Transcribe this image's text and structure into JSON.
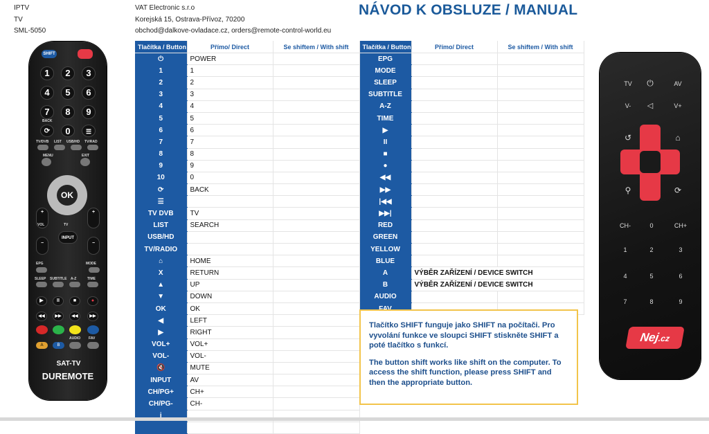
{
  "device": {
    "line1": "IPTV",
    "line2": "TV",
    "line3": "SML-5050"
  },
  "company": {
    "name": "VAT Electronic s.r.o",
    "address": "Korejská 15, Ostrava-Přívoz, 70200",
    "contact": "obchod@dalkove-ovladace.cz, orders@remote-control-world.eu"
  },
  "title": "NÁVOD K OBSLUZE / MANUAL",
  "headers": {
    "button": "Tlačítka / Button",
    "direct": "Přímo/ Direct",
    "shift": "Se shiftem / With shift"
  },
  "left_rows": [
    {
      "button": "⏻",
      "direct": "POWER",
      "shift": ""
    },
    {
      "button": "1",
      "direct": "1",
      "shift": ""
    },
    {
      "button": "2",
      "direct": "2",
      "shift": ""
    },
    {
      "button": "3",
      "direct": "3",
      "shift": ""
    },
    {
      "button": "4",
      "direct": "4",
      "shift": ""
    },
    {
      "button": "5",
      "direct": "5",
      "shift": ""
    },
    {
      "button": "6",
      "direct": "6",
      "shift": ""
    },
    {
      "button": "7",
      "direct": "7",
      "shift": ""
    },
    {
      "button": "8",
      "direct": "8",
      "shift": ""
    },
    {
      "button": "9",
      "direct": "9",
      "shift": ""
    },
    {
      "button": "10",
      "direct": "0",
      "shift": ""
    },
    {
      "button": "⟳",
      "direct": "BACK",
      "shift": ""
    },
    {
      "button": "☰",
      "direct": "",
      "shift": ""
    },
    {
      "button": "TV DVB",
      "direct": "TV",
      "shift": ""
    },
    {
      "button": "LIST",
      "direct": "SEARCH",
      "shift": ""
    },
    {
      "button": "USB/HD",
      "direct": "",
      "shift": ""
    },
    {
      "button": "TV/RADIO",
      "direct": "",
      "shift": ""
    },
    {
      "button": "⌂",
      "direct": "HOME",
      "shift": ""
    },
    {
      "button": "X",
      "direct": "RETURN",
      "shift": ""
    },
    {
      "button": "▲",
      "direct": "UP",
      "shift": ""
    },
    {
      "button": "▼",
      "direct": "DOWN",
      "shift": ""
    },
    {
      "button": "OK",
      "direct": "OK",
      "shift": ""
    },
    {
      "button": "◀",
      "direct": "LEFT",
      "shift": ""
    },
    {
      "button": "▶",
      "direct": "RIGHT",
      "shift": ""
    },
    {
      "button": "VOL+",
      "direct": "VOL+",
      "shift": ""
    },
    {
      "button": "VOL-",
      "direct": "VOL-",
      "shift": ""
    },
    {
      "button": "🔇",
      "direct": "MUTE",
      "shift": ""
    },
    {
      "button": "INPUT",
      "direct": "AV",
      "shift": ""
    },
    {
      "button": "CH/PG+",
      "direct": "CH+",
      "shift": ""
    },
    {
      "button": "CH/PG-",
      "direct": "CH-",
      "shift": ""
    },
    {
      "button": "i",
      "direct": "",
      "shift": ""
    },
    {
      "button": "",
      "direct": "",
      "shift": ""
    }
  ],
  "right_rows": [
    {
      "button": "EPG",
      "direct": "",
      "shift": ""
    },
    {
      "button": "MODE",
      "direct": "",
      "shift": ""
    },
    {
      "button": "SLEEP",
      "direct": "",
      "shift": ""
    },
    {
      "button": "SUBTITLE",
      "direct": "",
      "shift": ""
    },
    {
      "button": "A-Z",
      "direct": "",
      "shift": ""
    },
    {
      "button": "TIME",
      "direct": "",
      "shift": ""
    },
    {
      "button": "▶",
      "direct": "",
      "shift": ""
    },
    {
      "button": "II",
      "direct": "",
      "shift": ""
    },
    {
      "button": "■",
      "direct": "",
      "shift": ""
    },
    {
      "button": "●",
      "direct": "",
      "shift": ""
    },
    {
      "button": "◀◀",
      "direct": "",
      "shift": ""
    },
    {
      "button": "▶▶",
      "direct": "",
      "shift": ""
    },
    {
      "button": "|◀◀",
      "direct": "",
      "shift": ""
    },
    {
      "button": "▶▶|",
      "direct": "",
      "shift": ""
    },
    {
      "button": "RED",
      "direct": "",
      "shift": ""
    },
    {
      "button": "GREEN",
      "direct": "",
      "shift": ""
    },
    {
      "button": "YELLOW",
      "direct": "",
      "shift": ""
    },
    {
      "button": "BLUE",
      "direct": "",
      "shift": ""
    },
    {
      "button": "A",
      "direct": "VÝBĚR ZAŘÍZENÍ / DEVICE SWITCH",
      "shift": ""
    },
    {
      "button": "B",
      "direct": "VÝBĚR ZAŘÍZENÍ / DEVICE SWITCH",
      "shift": ""
    },
    {
      "button": "AUDIO",
      "direct": "",
      "shift": ""
    },
    {
      "button": "FAV",
      "direct": "",
      "shift": ""
    }
  ],
  "note": {
    "cz": "Tlačítko SHIFT funguje jako SHIFT na počítači. Pro vyvolání funkce ve sloupci SHIFT stiskněte SHIFT a poté tlačítko s funkcí.",
    "en": "The button shift works like shift on the computer. To access the shift function, please press SHIFT and then the appropriate button."
  },
  "remote_left": {
    "shift": "SHIFT",
    "ok": "OK",
    "input": "INPUT",
    "vol": "VOL",
    "tv": "TV",
    "brand_top": "SAT-TV",
    "brand": "DUREMOTE",
    "labels": {
      "back": "BACK",
      "tvdvb": "TV/DVB",
      "list": "LIST",
      "usbhd": "USB/HD",
      "tvrad": "TV/RAD",
      "menu": "MENU",
      "exit": "EXIT",
      "epg": "EPG",
      "mode": "MODE",
      "sleep": "SLEEP",
      "subtitle": "SUBTITLE",
      "az": "A-Z",
      "time": "TIME",
      "audio": "AUDIO",
      "fav": "FAV",
      "a": "A",
      "b": "B"
    }
  },
  "remote_right": {
    "tv": "TV",
    "av": "AV",
    "vminus": "V-",
    "vplus": "V+",
    "chminus": "CH-",
    "zero": "0",
    "chplus": "CH+",
    "n1": "1",
    "n2": "2",
    "n3": "3",
    "n4": "4",
    "n5": "5",
    "n6": "6",
    "n7": "7",
    "n8": "8",
    "n9": "9",
    "brand": "Nej",
    "brand_suffix": ".cz"
  }
}
